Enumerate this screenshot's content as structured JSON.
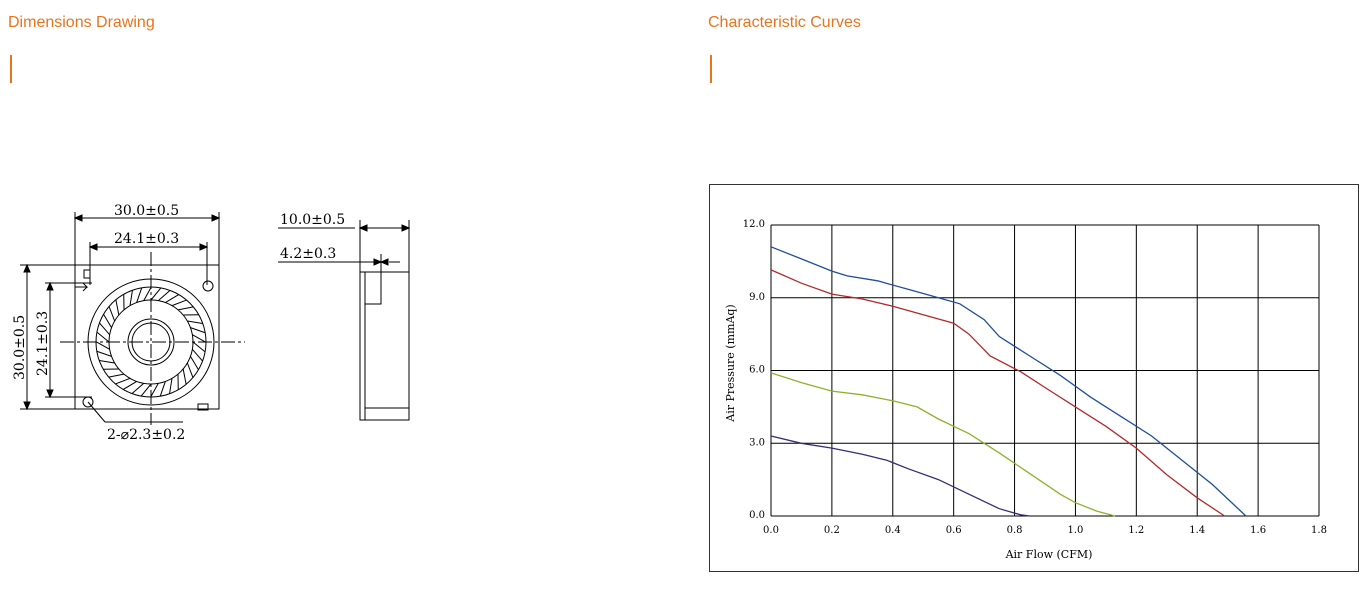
{
  "sections": {
    "dimensions_title": "Dimensions Drawing",
    "curves_title": "Characteristic Curves"
  },
  "drawing": {
    "labels": {
      "outer_width": "30.0±0.5",
      "inner_width": "24.1±0.3",
      "outer_height": "30.0±0.5",
      "inner_height": "24.1±0.3",
      "holes": "2-⌀2.3±0.2",
      "thickness": "10.0±0.5",
      "step": "4.2±0.3"
    }
  },
  "chart_data": {
    "type": "line",
    "xlabel": "Air Flow (CFM)",
    "ylabel": "Air Pressure (mmAq)",
    "xlim": [
      0,
      1.8
    ],
    "ylim": [
      0,
      12
    ],
    "x_ticks": [
      0.0,
      0.2,
      0.4,
      0.6,
      0.8,
      1.0,
      1.2,
      1.4,
      1.6,
      1.8
    ],
    "y_ticks": [
      0.0,
      3.0,
      6.0,
      9.0,
      12.0
    ],
    "x_tick_labels": [
      "0.0",
      "0.2",
      "0.4",
      "0.6",
      "0.8",
      "1.0",
      "1.2",
      "1.4",
      "1.6",
      "1.8"
    ],
    "y_tick_labels": [
      "0.0",
      "3.0",
      "6.0",
      "9.0",
      "12.0"
    ],
    "grid": true,
    "series": [
      {
        "color": "#1f4e9c",
        "x": [
          0,
          0.1,
          0.2,
          0.25,
          0.35,
          0.45,
          0.55,
          0.62,
          0.7,
          0.75,
          0.85,
          0.95,
          1.05,
          1.15,
          1.25,
          1.35,
          1.45,
          1.56
        ],
        "y": [
          11.1,
          10.6,
          10.1,
          9.9,
          9.7,
          9.35,
          9.0,
          8.75,
          8.1,
          7.4,
          6.6,
          5.8,
          4.9,
          4.1,
          3.3,
          2.3,
          1.3,
          0.0
        ]
      },
      {
        "color": "#b22a2a",
        "x": [
          0,
          0.1,
          0.2,
          0.3,
          0.4,
          0.5,
          0.6,
          0.65,
          0.72,
          0.82,
          0.9,
          1.0,
          1.1,
          1.2,
          1.3,
          1.4,
          1.49
        ],
        "y": [
          10.15,
          9.6,
          9.15,
          8.95,
          8.65,
          8.3,
          7.95,
          7.5,
          6.6,
          5.95,
          5.3,
          4.5,
          3.7,
          2.8,
          1.7,
          0.75,
          0.0
        ]
      },
      {
        "color": "#8cb22a",
        "x": [
          0,
          0.1,
          0.2,
          0.3,
          0.4,
          0.48,
          0.55,
          0.65,
          0.75,
          0.85,
          0.95,
          1.0,
          1.07,
          1.13
        ],
        "y": [
          5.9,
          5.5,
          5.15,
          5.0,
          4.75,
          4.5,
          4.0,
          3.4,
          2.6,
          1.75,
          0.9,
          0.55,
          0.2,
          0.0
        ]
      },
      {
        "color": "#3a2a7a",
        "x": [
          0,
          0.1,
          0.2,
          0.3,
          0.38,
          0.45,
          0.55,
          0.65,
          0.75,
          0.82,
          0.85
        ],
        "y": [
          3.3,
          3.0,
          2.8,
          2.55,
          2.3,
          1.95,
          1.5,
          0.9,
          0.3,
          0.05,
          0.0
        ]
      }
    ]
  }
}
